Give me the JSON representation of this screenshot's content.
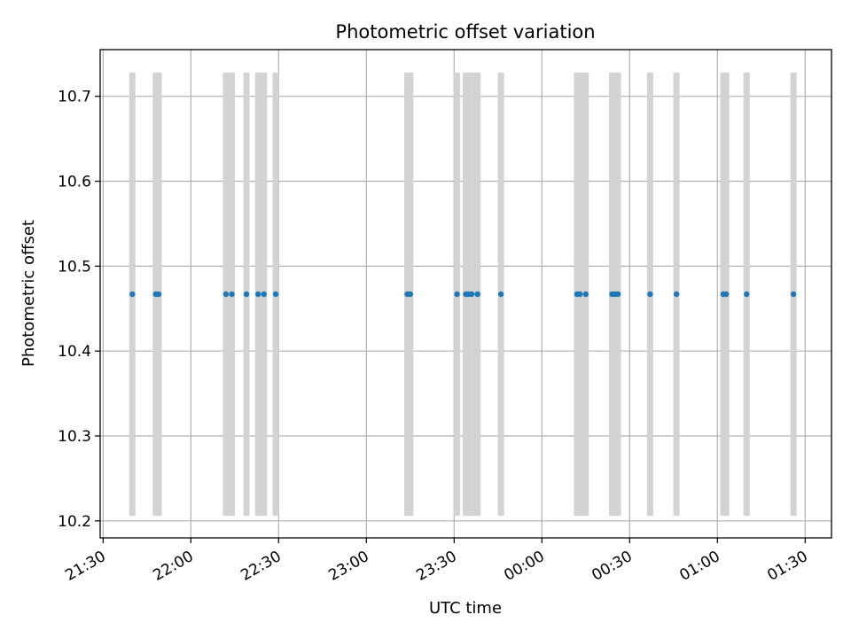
{
  "chart_data": {
    "type": "scatter",
    "title": "Photometric offset variation",
    "xlabel": "UTC time",
    "ylabel": "Photometric offset",
    "xlim": [
      "21:29",
      "01:39"
    ],
    "ylim": [
      10.18,
      10.755
    ],
    "x_ticks": [
      "21:30",
      "22:00",
      "22:30",
      "23:00",
      "23:30",
      "00:00",
      "00:30",
      "01:00",
      "01:30"
    ],
    "y_ticks": [
      "10.2",
      "10.3",
      "10.4",
      "10.5",
      "10.6",
      "10.7"
    ],
    "grid": true,
    "marker_color": "#1f77b4",
    "band_color": "#d3d3d3",
    "exposure_band_range": [
      10.206,
      10.728
    ],
    "points": {
      "x": [
        "21:40",
        "21:48",
        "21:49",
        "22:12",
        "22:14",
        "22:19",
        "22:23",
        "22:25",
        "22:29",
        "23:14",
        "23:15",
        "23:31",
        "23:34",
        "23:35",
        "23:36",
        "23:38",
        "23:46",
        "00:12",
        "00:13",
        "00:15",
        "00:24",
        "00:25",
        "00:26",
        "00:37",
        "00:46",
        "01:02",
        "01:03",
        "01:10",
        "01:26"
      ],
      "y": [
        10.467,
        10.467,
        10.467,
        10.467,
        10.467,
        10.467,
        10.467,
        10.467,
        10.467,
        10.467,
        10.467,
        10.467,
        10.467,
        10.467,
        10.467,
        10.467,
        10.467,
        10.467,
        10.467,
        10.467,
        10.467,
        10.467,
        10.467,
        10.467,
        10.467,
        10.467,
        10.467,
        10.467,
        10.467
      ]
    }
  }
}
